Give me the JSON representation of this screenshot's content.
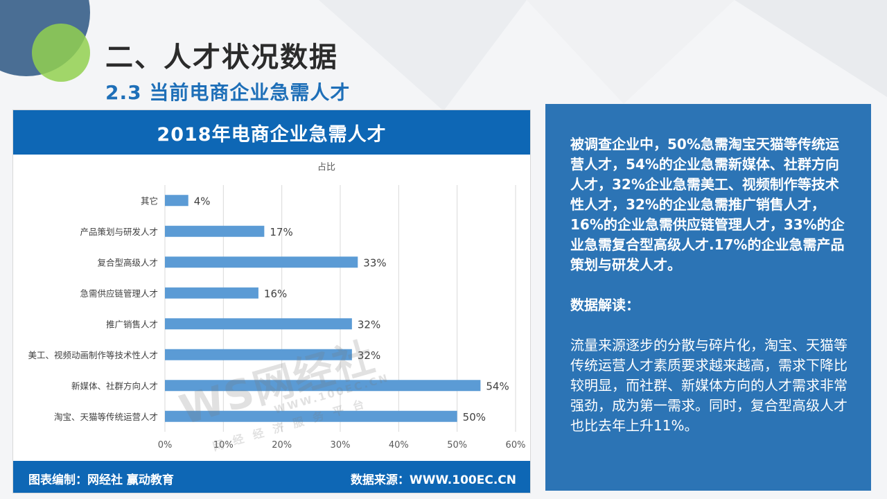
{
  "slide": {
    "title": "二、人才状况数据",
    "subtitle": "2.3 当前电商企业急需人才"
  },
  "chart_panel": {
    "header": "2018年电商企业急需人才",
    "footer_left": "图表编制：网经社 赢动教育",
    "footer_right": "数据来源：WWW.100EC.CN",
    "watermark_logo": "WS网经社",
    "watermark_url": "WWW.100EC.CN",
    "watermark_tagline": "网经经济服务平台"
  },
  "chart_data": {
    "type": "bar",
    "orientation": "horizontal",
    "title": "占比",
    "categories": [
      "其它",
      "产品策划与研发人才",
      "复合型高级人才",
      "急需供应链管理人才",
      "推广销售人才",
      "美工、视频动画制作等技术性人才",
      "新媒体、社群方向人才",
      "淘宝、天猫等传统运营人才"
    ],
    "values": [
      4,
      17,
      33,
      16,
      32,
      32,
      54,
      50
    ],
    "value_labels": [
      "4%",
      "17%",
      "33%",
      "16%",
      "32%",
      "32%",
      "54%",
      "50%"
    ],
    "x_ticks": [
      "0%",
      "10%",
      "20%",
      "30%",
      "40%",
      "50%",
      "60%"
    ],
    "xlim": [
      0,
      60
    ],
    "grid": true,
    "bar_color": "#5b9bd5"
  },
  "info_panel": {
    "paragraph_1": "被调查企业中，50%急需淘宝天猫等传统运营人才，54%的企业急需新媒体、社群方向人才，32%企业急需美工、视频制作等技术性人才，32%的企业急需推广销售人才，16%的企业急需供应链管理人才，33%的企业急需复合型高级人才.17%的企业急需产品策划与研发人才。",
    "heading_2": "数据解读：",
    "paragraph_3": "流量来源逐步的分散与碎片化，淘宝、天猫等传统运营人才素质要求越来越高，需求下降比较明显，而社群、新媒体方向的人才需求非常强劲，成为第一需求。同时，复合型高级人才也比去年上升11%。"
  },
  "colors": {
    "header_blue": "#0e67b5",
    "info_blue": "#2c74b5",
    "subtitle_blue": "#1e6fb8",
    "bar_blue": "#5b9bd5",
    "deco_navy": "#4a6e94",
    "deco_green": "#92d050"
  }
}
